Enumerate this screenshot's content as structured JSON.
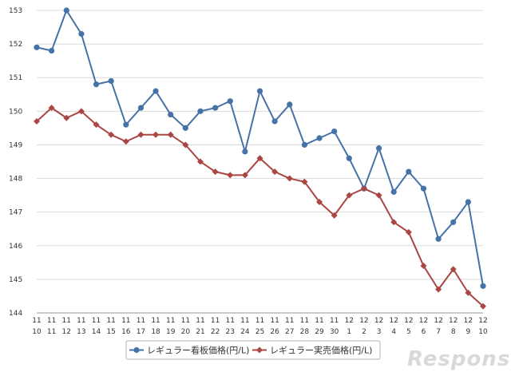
{
  "chart_data": {
    "type": "line",
    "categories": [
      [
        "11",
        "10"
      ],
      [
        "11",
        "11"
      ],
      [
        "11",
        "12"
      ],
      [
        "11",
        "13"
      ],
      [
        "11",
        "14"
      ],
      [
        "11",
        "15"
      ],
      [
        "11",
        "16"
      ],
      [
        "11",
        "17"
      ],
      [
        "11",
        "18"
      ],
      [
        "11",
        "19"
      ],
      [
        "11",
        "20"
      ],
      [
        "11",
        "21"
      ],
      [
        "11",
        "22"
      ],
      [
        "11",
        "23"
      ],
      [
        "11",
        "24"
      ],
      [
        "11",
        "25"
      ],
      [
        "11",
        "26"
      ],
      [
        "11",
        "27"
      ],
      [
        "11",
        "28"
      ],
      [
        "11",
        "29"
      ],
      [
        "11",
        "30"
      ],
      [
        "12",
        "1"
      ],
      [
        "12",
        "2"
      ],
      [
        "12",
        "3"
      ],
      [
        "12",
        "4"
      ],
      [
        "12",
        "5"
      ],
      [
        "12",
        "6"
      ],
      [
        "12",
        "7"
      ],
      [
        "12",
        "8"
      ],
      [
        "12",
        "9"
      ],
      [
        "12",
        "10"
      ]
    ],
    "series": [
      {
        "name": "レギュラー看板価格(円/L)",
        "color": "#4572a7",
        "marker": "circle",
        "values": [
          151.9,
          151.8,
          153.0,
          152.3,
          150.8,
          150.9,
          149.6,
          150.1,
          150.6,
          149.9,
          149.5,
          150.0,
          150.1,
          150.3,
          148.8,
          150.6,
          149.7,
          150.2,
          149.0,
          149.2,
          149.4,
          148.6,
          147.7,
          148.9,
          147.6,
          148.2,
          147.7,
          146.2,
          146.7,
          147.3,
          144.8
        ]
      },
      {
        "name": "レギュラー実売価格(円/L)",
        "color": "#aa4643",
        "marker": "diamond",
        "values": [
          149.7,
          150.1,
          149.8,
          150.0,
          149.6,
          149.3,
          149.1,
          149.3,
          149.3,
          149.3,
          149.0,
          148.5,
          148.2,
          148.1,
          148.1,
          148.6,
          148.2,
          148.0,
          147.9,
          147.3,
          146.9,
          147.5,
          147.7,
          147.5,
          146.7,
          146.4,
          145.4,
          144.7,
          145.3,
          144.6,
          144.2
        ]
      }
    ],
    "ylim": [
      144,
      153
    ],
    "yticks": [
      144,
      145,
      146,
      147,
      148,
      149,
      150,
      151,
      152,
      153
    ],
    "grid": true,
    "legend": "bottom"
  },
  "watermark": "Response."
}
